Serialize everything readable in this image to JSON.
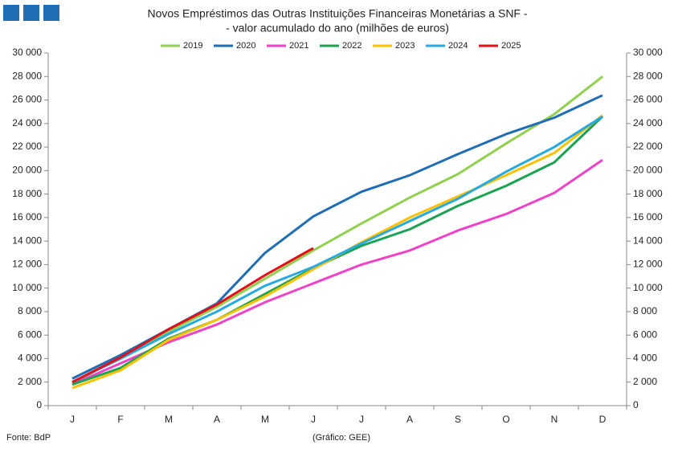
{
  "chart_data": {
    "type": "line",
    "title": [
      "Novos Empréstimos das Outras Instituições Financeiras Monetárias a SNF -",
      "- valor acumulado do ano (milhões de euros)"
    ],
    "categories": [
      "J",
      "F",
      "M",
      "A",
      "M",
      "J",
      "J",
      "A",
      "S",
      "O",
      "N",
      "D"
    ],
    "series": [
      {
        "name": "2019",
        "color": "#92d050",
        "values": [
          1900,
          4100,
          6300,
          8400,
          10800,
          13200,
          15500,
          17700,
          19700,
          22300,
          24800,
          28000
        ]
      },
      {
        "name": "2020",
        "color": "#1f6db5",
        "values": [
          2300,
          4300,
          6500,
          8700,
          13000,
          16100,
          18200,
          19600,
          21400,
          23100,
          24500,
          26400
        ]
      },
      {
        "name": "2021",
        "color": "#f042c8",
        "values": [
          1800,
          3600,
          5400,
          6900,
          8800,
          10400,
          12000,
          13200,
          14900,
          16300,
          18100,
          20900
        ]
      },
      {
        "name": "2022",
        "color": "#1aa352",
        "values": [
          1800,
          3200,
          5700,
          7300,
          9500,
          11700,
          13600,
          15000,
          17000,
          18700,
          20700,
          24600
        ]
      },
      {
        "name": "2023",
        "color": "#ffc000",
        "values": [
          1500,
          3000,
          5600,
          7300,
          9300,
          11600,
          13900,
          16000,
          17800,
          19600,
          21500,
          24700
        ]
      },
      {
        "name": "2024",
        "color": "#27a9e1",
        "values": [
          2000,
          4000,
          6100,
          8000,
          10200,
          11800,
          13800,
          15700,
          17600,
          19900,
          22000,
          24600
        ]
      },
      {
        "name": "2025",
        "color": "#e3101c",
        "values": [
          2000,
          4100,
          6500,
          8600,
          11100,
          13400,
          null,
          null,
          null,
          null,
          null,
          null
        ]
      }
    ],
    "ylim": [
      0,
      30000
    ],
    "yticks": [
      0,
      {
        "value": 2000,
        "label": "2 000"
      },
      {
        "value": 4000,
        "label": "4 000"
      },
      {
        "value": 6000,
        "label": "6 000"
      },
      {
        "value": 8000,
        "label": "8 000"
      },
      {
        "value": 10000,
        "label": "10 000"
      },
      {
        "value": 12000,
        "label": "12 000"
      },
      {
        "value": 14000,
        "label": "14 000"
      },
      {
        "value": 16000,
        "label": "16 000"
      },
      {
        "value": 18000,
        "label": "18 000"
      },
      {
        "value": 20000,
        "label": "20 000"
      },
      {
        "value": 22000,
        "label": "22 000"
      },
      {
        "value": 24000,
        "label": "24 000"
      },
      {
        "value": 26000,
        "label": "26 000"
      },
      {
        "value": 28000,
        "label": "28 000"
      },
      {
        "value": 30000,
        "label": "30 000"
      }
    ],
    "y2lim": [
      0,
      30000
    ],
    "y2ticks": [
      0,
      {
        "value": 2000,
        "label": "2 000"
      },
      {
        "value": 4000,
        "label": "4 000"
      },
      {
        "value": 6000,
        "label": "6 000"
      },
      {
        "value": 8000,
        "label": "8 000"
      },
      {
        "value": 10000,
        "label": "10 000"
      },
      {
        "value": 12000,
        "label": "12 000"
      },
      {
        "value": 14000,
        "label": "14 000"
      },
      {
        "value": 16000,
        "label": "16 000"
      },
      {
        "value": 18000,
        "label": "18 000"
      },
      {
        "value": 20000,
        "label": "20 000"
      },
      {
        "value": 22000,
        "label": "22 000"
      },
      {
        "value": 24000,
        "label": "24 000"
      },
      {
        "value": 26000,
        "label": "26 000"
      },
      {
        "value": 28000,
        "label": "28 000"
      },
      {
        "value": 30000,
        "label": "30 000"
      }
    ],
    "grid": false,
    "legend": "top",
    "source": "Fonte: BdP",
    "credit": "(Gráfico: GEE)"
  }
}
